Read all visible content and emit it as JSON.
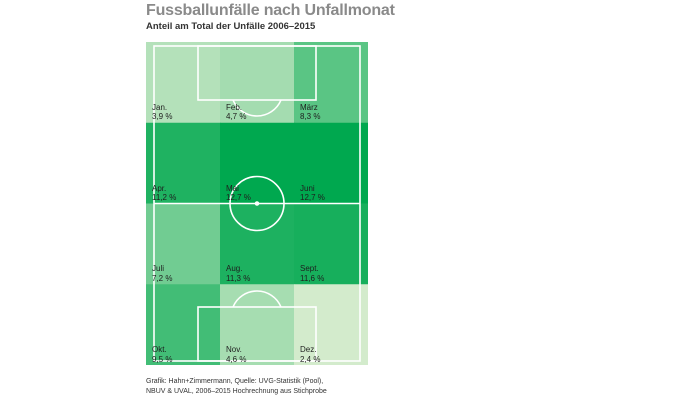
{
  "header": {
    "title": "Fussballunfälle nach Unfallmonat",
    "subtitle": "Anteil am Total der Unfälle 2006–2015"
  },
  "chart_data": {
    "type": "heatmap",
    "title": "Fussballunfälle nach Unfallmonat",
    "subtitle": "Anteil am Total der Unfälle 2006–2015",
    "unit": "%",
    "rows": 4,
    "cols": 3,
    "cells": [
      {
        "month": "Jan.",
        "value": 3.9,
        "label": "3,9 %"
      },
      {
        "month": "Feb.",
        "value": 4.7,
        "label": "4,7 %"
      },
      {
        "month": "März",
        "value": 8.3,
        "label": "8,3 %"
      },
      {
        "month": "Apr.",
        "value": 11.2,
        "label": "11,2 %"
      },
      {
        "month": "Mai",
        "value": 12.7,
        "label": "12,7 %"
      },
      {
        "month": "Juni",
        "value": 12.7,
        "label": "12,7 %"
      },
      {
        "month": "Juli",
        "value": 7.2,
        "label": "7,2 %"
      },
      {
        "month": "Aug.",
        "value": 11.3,
        "label": "11,3 %"
      },
      {
        "month": "Sept.",
        "value": 11.6,
        "label": "11,6 %"
      },
      {
        "month": "Okt.",
        "value": 9.5,
        "label": "9,5 %"
      },
      {
        "month": "Nov.",
        "value": 4.6,
        "label": "4,6 %"
      },
      {
        "month": "Dez.",
        "value": 2.4,
        "label": "2,4 %"
      }
    ],
    "colors": {
      "low": "#d3ebcc",
      "high": "#00a84f",
      "pitch_lines": "#ffffff"
    }
  },
  "source": {
    "line1": "Grafik: Hahn+Zimmermann, Quelle: UVG-Statistik (Pool),",
    "line2": "NBUV & UVAL, 2006–2015 Hochrechnung aus Stichprobe"
  }
}
